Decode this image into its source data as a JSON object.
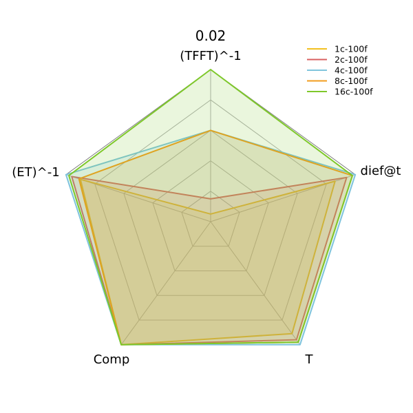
{
  "chart_data": {
    "type": "radar",
    "title": "0.02",
    "axes": [
      "(TFFT)^-1",
      "dief@t",
      "T",
      "Comp",
      "(ET)^-1"
    ],
    "rlim": [
      0,
      1
    ],
    "grid": true,
    "legend_position": "top-right",
    "series": [
      {
        "name": "1c-100f",
        "color": "#f2c01e",
        "values": [
          0.05,
          0.86,
          0.91,
          1.0,
          0.9
        ]
      },
      {
        "name": "2c-100f",
        "color": "#d95f5f",
        "values": [
          0.15,
          0.94,
          0.96,
          1.0,
          0.96
        ]
      },
      {
        "name": "4c-100f",
        "color": "#7fc4dc",
        "values": [
          0.6,
          1.0,
          1.0,
          1.0,
          1.0
        ]
      },
      {
        "name": "8c-100f",
        "color": "#f29c1e",
        "values": [
          0.6,
          0.98,
          0.98,
          1.0,
          0.91
        ]
      },
      {
        "name": "16c-100f",
        "color": "#7ec82a",
        "values": [
          1.0,
          0.98,
          0.98,
          1.0,
          0.98
        ]
      }
    ]
  }
}
